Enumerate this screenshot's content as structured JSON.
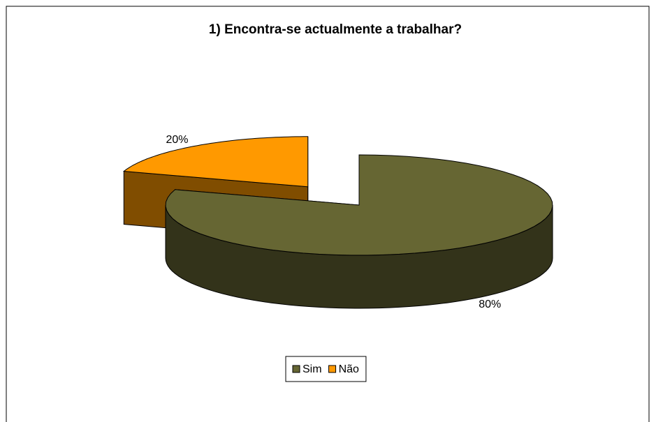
{
  "chart_data": {
    "type": "pie",
    "title": "1) Encontra-se actualmente a trabalhar?",
    "categories": [
      "Sim",
      "Não"
    ],
    "values": [
      80,
      20
    ],
    "value_labels": [
      "80%",
      "20%"
    ],
    "colors": [
      "#666633",
      "#ff9900"
    ],
    "legend": "bottom"
  }
}
